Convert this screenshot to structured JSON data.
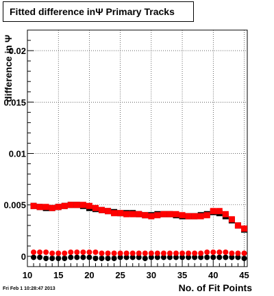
{
  "title": {
    "text": "Fitted difference inΨ  Primary Tracks"
  },
  "footer": {
    "text": "Fri Feb  1 10:28:47 2013"
  },
  "chart_data": {
    "type": "scatter",
    "title": "Fitted difference inΨ  Primary Tracks",
    "xlabel": "No. of Fit Points",
    "ylabel": "difference in Ψ",
    "xlim": [
      10,
      45.5
    ],
    "ylim": [
      -0.001,
      0.022
    ],
    "x_ticks": [
      10,
      15,
      20,
      25,
      30,
      35,
      40,
      45
    ],
    "x_tick_labels": [
      "10",
      "15",
      "20",
      "25",
      "30",
      "35",
      "40",
      "45"
    ],
    "y_ticks": [
      0,
      0.005,
      0.01,
      0.015,
      0.02
    ],
    "y_tick_labels": [
      "0",
      "0.005",
      "0.01",
      "0.015",
      "0.02"
    ],
    "grid": true,
    "x": [
      11,
      12,
      13,
      14,
      15,
      16,
      17,
      18,
      19,
      20,
      21,
      22,
      23,
      24,
      25,
      26,
      27,
      28,
      29,
      30,
      31,
      32,
      33,
      34,
      35,
      36,
      37,
      38,
      39,
      40,
      41,
      42,
      43,
      44,
      45
    ],
    "series": [
      {
        "color": "#000000",
        "marker": "square",
        "values": [
          0.0049,
          0.0048,
          0.0047,
          0.0047,
          0.0048,
          0.0049,
          0.005,
          0.005,
          0.0049,
          0.0047,
          0.0046,
          0.0045,
          0.0044,
          0.0043,
          0.0042,
          0.0042,
          0.0042,
          0.0041,
          0.004,
          0.004,
          0.0041,
          0.0041,
          0.0041,
          0.004,
          0.0039,
          0.0039,
          0.0039,
          0.004,
          0.0041,
          0.0043,
          0.0042,
          0.0039,
          0.0035,
          0.003,
          0.0026
        ]
      },
      {
        "color": "#ff0000",
        "marker": "square",
        "values": [
          0.0049,
          0.0048,
          0.0048,
          0.0047,
          0.0048,
          0.0049,
          0.005,
          0.005,
          0.005,
          0.0049,
          0.0047,
          0.0045,
          0.0044,
          0.0042,
          0.0042,
          0.0041,
          0.0041,
          0.0041,
          0.004,
          0.0039,
          0.004,
          0.0041,
          0.0041,
          0.0041,
          0.004,
          0.0039,
          0.0039,
          0.0039,
          0.004,
          0.0044,
          0.0044,
          0.0041,
          0.0036,
          0.003,
          0.0027
        ]
      },
      {
        "color": "#000000",
        "marker": "circle",
        "values": [
          -0.0001,
          -0.0001,
          -0.0002,
          -0.0002,
          -0.0002,
          -0.0002,
          -0.0001,
          -0.0001,
          -0.0001,
          -0.0001,
          -0.0002,
          -0.0002,
          -0.0002,
          -0.0002,
          -0.0001,
          -0.0001,
          -0.0001,
          -0.0001,
          -0.0002,
          -0.0001,
          -0.0001,
          -0.0001,
          -0.0001,
          -0.0001,
          -0.0001,
          -0.0001,
          -0.0001,
          -0.0001,
          -0.0001,
          -0.0001,
          -0.0001,
          -0.0001,
          -0.0001,
          -0.0001,
          -0.0002
        ]
      },
      {
        "color": "#ff0000",
        "marker": "circle",
        "values": [
          0.0004,
          0.0004,
          0.0004,
          0.0003,
          0.0003,
          0.0003,
          0.0004,
          0.0004,
          0.0004,
          0.0004,
          0.0004,
          0.0003,
          0.0003,
          0.0003,
          0.0003,
          0.0003,
          0.0003,
          0.0003,
          0.0003,
          0.0003,
          0.0003,
          0.0003,
          0.0003,
          0.0003,
          0.0003,
          0.0003,
          0.0003,
          0.0003,
          0.0004,
          0.0004,
          0.0004,
          0.0004,
          0.0003,
          0.0003,
          0.0003
        ]
      }
    ]
  }
}
